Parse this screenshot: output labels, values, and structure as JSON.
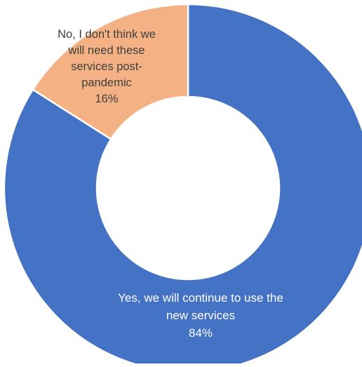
{
  "chart_data": {
    "type": "pie",
    "variant": "donut",
    "title": "",
    "slices": [
      {
        "label_lines": [
          "Yes, we will continue to  use the",
          "new services"
        ],
        "label": "Yes, we will continue to use the new services",
        "value": 84,
        "value_label": "84%",
        "color": "#4472c4",
        "label_color": "#ffffff"
      },
      {
        "label_lines": [
          "No, I don't think we",
          "will need these",
          "services post-",
          "pandemic"
        ],
        "label": "No, I don't think we will need these services post-pandemic",
        "value": 16,
        "value_label": "16%",
        "color": "#f4b183",
        "label_color": "#404040"
      }
    ],
    "legend": false
  }
}
